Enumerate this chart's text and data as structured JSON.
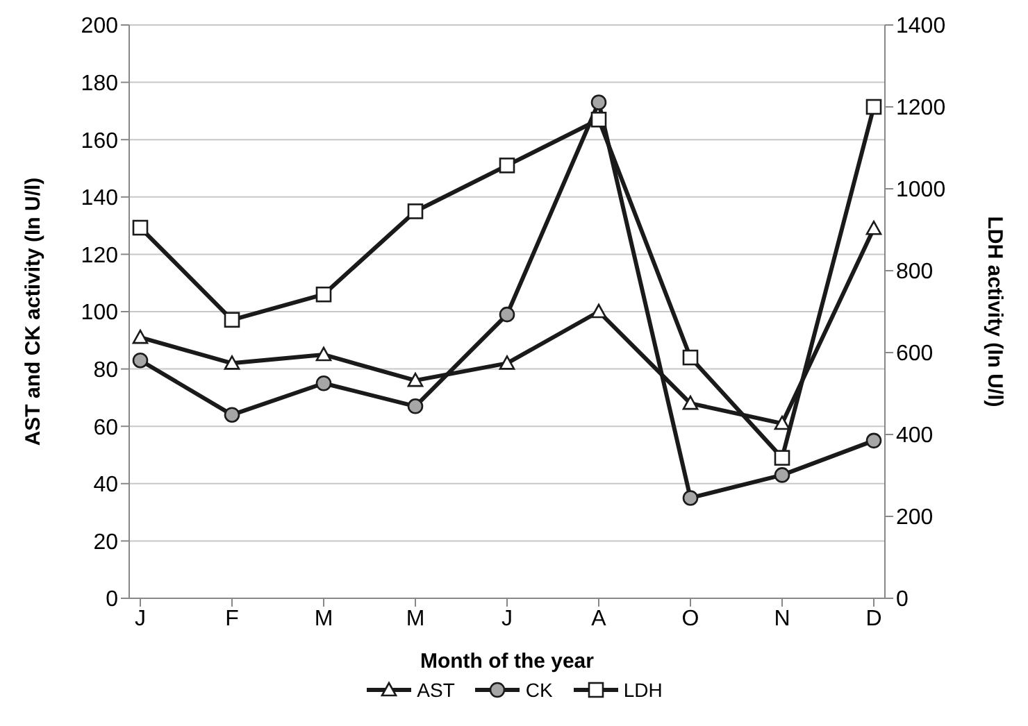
{
  "chart_data": {
    "type": "line",
    "xlabel": "Month of the year",
    "ylabel": "AST and CK activity (In U/l)",
    "y2label": "LDH activity (In U/l)",
    "categories": [
      "J",
      "F",
      "M",
      "M",
      "J",
      "A",
      "O",
      "N",
      "D"
    ],
    "series": [
      {
        "name": "AST",
        "color": "#1a1a1a",
        "marker": "triangle",
        "values": [
          91,
          82,
          85,
          76,
          82,
          100,
          68,
          61,
          129
        ]
      },
      {
        "name": "CK",
        "color": "#1a1a1a",
        "marker": "circle",
        "values": [
          83,
          64,
          75,
          67,
          99,
          173,
          35,
          43,
          55
        ]
      },
      {
        "name": "LDH",
        "color": "#1a1a1a",
        "marker": "square",
        "axis": "y2",
        "values": [
          905,
          680,
          742,
          945,
          1057,
          1169,
          588,
          343,
          1200
        ]
      }
    ],
    "ylim": [
      0,
      200
    ],
    "yticks": [
      0,
      20,
      40,
      60,
      80,
      100,
      120,
      140,
      160,
      180,
      200
    ],
    "y2lim": [
      0,
      1400
    ],
    "y2ticks": [
      0,
      200,
      400,
      600,
      800,
      1000,
      1200,
      1400
    ],
    "grid": "y",
    "legend": "bottom",
    "line_style": "solid"
  }
}
